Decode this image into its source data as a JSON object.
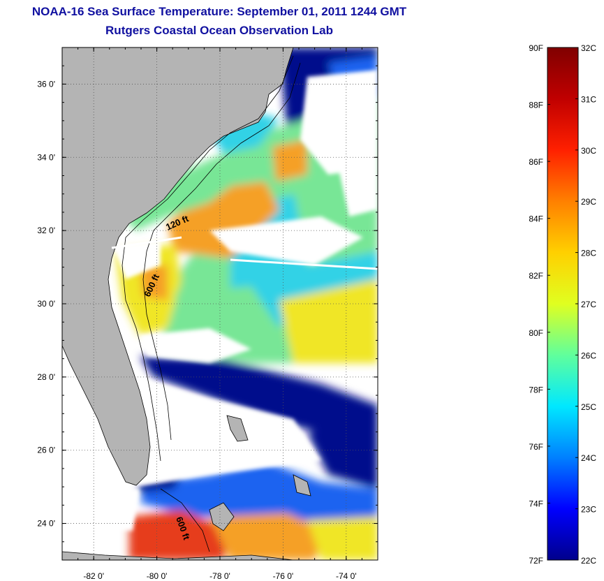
{
  "title": "NOAA-16 Sea Surface Temperature:  September 01, 2011 1244 GMT",
  "subtitle": "Rutgers Coastal Ocean Observation Lab",
  "map": {
    "lon_ticks": [
      "-82 0'",
      "-80 0'",
      "-78 0'",
      "-76 0'",
      "-74 0'"
    ],
    "lat_ticks": [
      "36 0'",
      "34 0'",
      "32 0'",
      "30 0'",
      "28 0'",
      "26 0'",
      "24 0'"
    ],
    "lon_range": [
      -83,
      -73
    ],
    "lat_range": [
      23,
      37
    ],
    "contour_labels": [
      "120 ft",
      "600 ft",
      "600 ft"
    ],
    "land_color": "#b4b4b4",
    "colors": {
      "cold": "#00108c",
      "blue": "#1e64f0",
      "cyan": "#32d2e6",
      "green": "#78e696",
      "yellow": "#f0e628",
      "orange": "#f5a028",
      "red": "#e63c1e",
      "cloud": "#ffffff"
    }
  },
  "colorbar": {
    "fahrenheit_labels": [
      "90F",
      "88F",
      "86F",
      "84F",
      "82F",
      "80F",
      "78F",
      "76F",
      "74F",
      "72F"
    ],
    "celsius_labels": [
      "32C",
      "31C",
      "30C",
      "29C",
      "28C",
      "27C",
      "26C",
      "25C",
      "24C",
      "23C",
      "22C"
    ],
    "range_c": [
      22,
      32
    ],
    "range_f": [
      72,
      90
    ],
    "stops": [
      "#00008c",
      "#0000ff",
      "#0080ff",
      "#00e8ff",
      "#60ff9c",
      "#e0ff20",
      "#ffd000",
      "#ff8000",
      "#ff2000",
      "#c00000",
      "#800000"
    ]
  }
}
